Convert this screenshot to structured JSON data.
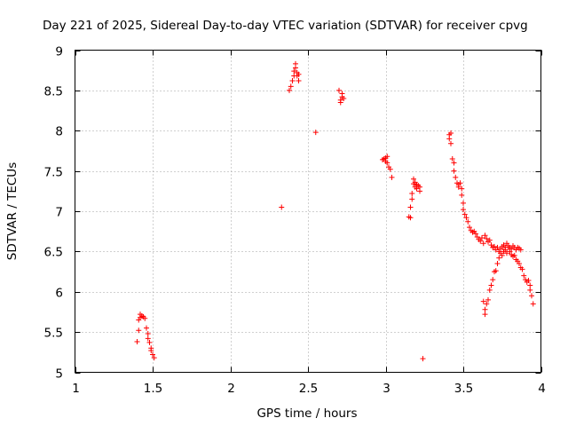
{
  "chart_data": {
    "type": "scatter",
    "title": "Day 221 of 2025, Sidereal Day-to-day VTEC variation (SDTVAR) for receiver cpvg",
    "xlabel": "GPS time / hours",
    "ylabel": "SDTVAR / TECUs",
    "xlim": [
      1,
      4
    ],
    "ylim": [
      5,
      9
    ],
    "xticks": [
      1,
      1.5,
      2,
      2.5,
      3,
      3.5,
      4
    ],
    "xtick_labels": [
      "1",
      "1.5",
      "2",
      "2.5",
      "3",
      "3.5",
      "4"
    ],
    "yticks": [
      5,
      5.5,
      6,
      6.5,
      7,
      7.5,
      8,
      8.5,
      9
    ],
    "ytick_labels": [
      "5",
      "5.5",
      "6",
      "6.5",
      "7",
      "7.5",
      "8",
      "8.5",
      "9"
    ],
    "grid": true,
    "marker": "+",
    "color": "#ff0000",
    "series": [
      {
        "name": "SDTVAR",
        "points": [
          [
            1.4,
            5.38
          ],
          [
            1.41,
            5.52
          ],
          [
            1.41,
            5.65
          ],
          [
            1.42,
            5.72
          ],
          [
            1.42,
            5.68
          ],
          [
            1.43,
            5.7
          ],
          [
            1.44,
            5.69
          ],
          [
            1.45,
            5.67
          ],
          [
            1.46,
            5.55
          ],
          [
            1.47,
            5.48
          ],
          [
            1.47,
            5.42
          ],
          [
            1.48,
            5.37
          ],
          [
            1.49,
            5.3
          ],
          [
            1.49,
            5.27
          ],
          [
            1.5,
            5.22
          ],
          [
            1.51,
            5.18
          ],
          [
            2.33,
            7.05
          ],
          [
            2.38,
            8.5
          ],
          [
            2.39,
            8.55
          ],
          [
            2.4,
            8.62
          ],
          [
            2.41,
            8.68
          ],
          [
            2.41,
            8.74
          ],
          [
            2.42,
            8.78
          ],
          [
            2.42,
            8.83
          ],
          [
            2.43,
            8.72
          ],
          [
            2.43,
            8.68
          ],
          [
            2.44,
            8.62
          ],
          [
            2.44,
            8.7
          ],
          [
            2.55,
            7.98
          ],
          [
            2.7,
            8.5
          ],
          [
            2.71,
            8.38
          ],
          [
            2.71,
            8.35
          ],
          [
            2.72,
            8.42
          ],
          [
            2.72,
            8.46
          ],
          [
            2.73,
            8.4
          ],
          [
            2.98,
            7.64
          ],
          [
            2.99,
            7.65
          ],
          [
            3.0,
            7.62
          ],
          [
            3.0,
            7.66
          ],
          [
            3.01,
            7.68
          ],
          [
            3.01,
            7.6
          ],
          [
            3.02,
            7.55
          ],
          [
            3.03,
            7.52
          ],
          [
            3.04,
            7.42
          ],
          [
            3.15,
            6.93
          ],
          [
            3.16,
            6.92
          ],
          [
            3.16,
            7.05
          ],
          [
            3.17,
            7.15
          ],
          [
            3.17,
            7.22
          ],
          [
            3.18,
            7.34
          ],
          [
            3.18,
            7.4
          ],
          [
            3.19,
            7.36
          ],
          [
            3.19,
            7.3
          ],
          [
            3.2,
            7.33
          ],
          [
            3.2,
            7.28
          ],
          [
            3.21,
            7.32
          ],
          [
            3.22,
            7.25
          ],
          [
            3.22,
            7.3
          ],
          [
            3.24,
            5.17
          ],
          [
            3.41,
            7.9
          ],
          [
            3.41,
            7.95
          ],
          [
            3.42,
            7.97
          ],
          [
            3.42,
            7.84
          ],
          [
            3.43,
            7.65
          ],
          [
            3.44,
            7.6
          ],
          [
            3.44,
            7.5
          ],
          [
            3.45,
            7.42
          ],
          [
            3.46,
            7.35
          ],
          [
            3.47,
            7.33
          ],
          [
            3.47,
            7.3
          ],
          [
            3.48,
            7.35
          ],
          [
            3.49,
            7.28
          ],
          [
            3.49,
            7.2
          ],
          [
            3.5,
            7.1
          ],
          [
            3.5,
            7.02
          ],
          [
            3.51,
            6.96
          ],
          [
            3.52,
            6.92
          ],
          [
            3.53,
            6.87
          ],
          [
            3.54,
            6.8
          ],
          [
            3.55,
            6.76
          ],
          [
            3.56,
            6.74
          ],
          [
            3.57,
            6.75
          ],
          [
            3.58,
            6.72
          ],
          [
            3.59,
            6.68
          ],
          [
            3.6,
            6.65
          ],
          [
            3.61,
            6.63
          ],
          [
            3.62,
            6.67
          ],
          [
            3.63,
            6.6
          ],
          [
            3.64,
            6.7
          ],
          [
            3.65,
            6.66
          ],
          [
            3.66,
            6.62
          ],
          [
            3.67,
            6.64
          ],
          [
            3.68,
            6.58
          ],
          [
            3.69,
            6.55
          ],
          [
            3.7,
            6.56
          ],
          [
            3.71,
            6.52
          ],
          [
            3.72,
            6.55
          ],
          [
            3.73,
            6.5
          ],
          [
            3.74,
            6.53
          ],
          [
            3.75,
            6.56
          ],
          [
            3.76,
            6.58
          ],
          [
            3.77,
            6.55
          ],
          [
            3.78,
            6.6
          ],
          [
            3.79,
            6.57
          ],
          [
            3.8,
            6.55
          ],
          [
            3.81,
            6.53
          ],
          [
            3.82,
            6.57
          ],
          [
            3.83,
            6.55
          ],
          [
            3.84,
            6.52
          ],
          [
            3.85,
            6.55
          ],
          [
            3.86,
            6.54
          ],
          [
            3.87,
            6.52
          ],
          [
            3.63,
            5.88
          ],
          [
            3.64,
            5.72
          ],
          [
            3.64,
            5.78
          ],
          [
            3.65,
            5.85
          ],
          [
            3.66,
            5.9
          ],
          [
            3.67,
            6.02
          ],
          [
            3.68,
            6.08
          ],
          [
            3.69,
            6.15
          ],
          [
            3.7,
            6.25
          ],
          [
            3.71,
            6.26
          ],
          [
            3.72,
            6.35
          ],
          [
            3.73,
            6.42
          ],
          [
            3.74,
            6.48
          ],
          [
            3.75,
            6.45
          ],
          [
            3.76,
            6.5
          ],
          [
            3.77,
            6.52
          ],
          [
            3.78,
            6.48
          ],
          [
            3.79,
            6.55
          ],
          [
            3.8,
            6.5
          ],
          [
            3.81,
            6.46
          ],
          [
            3.82,
            6.44
          ],
          [
            3.83,
            6.45
          ],
          [
            3.84,
            6.4
          ],
          [
            3.85,
            6.38
          ],
          [
            3.86,
            6.35
          ],
          [
            3.87,
            6.3
          ],
          [
            3.88,
            6.28
          ],
          [
            3.89,
            6.2
          ],
          [
            3.9,
            6.15
          ],
          [
            3.91,
            6.12
          ],
          [
            3.92,
            6.14
          ],
          [
            3.93,
            6.08
          ],
          [
            3.93,
            6.02
          ],
          [
            3.94,
            5.95
          ],
          [
            3.95,
            5.85
          ]
        ]
      }
    ]
  }
}
